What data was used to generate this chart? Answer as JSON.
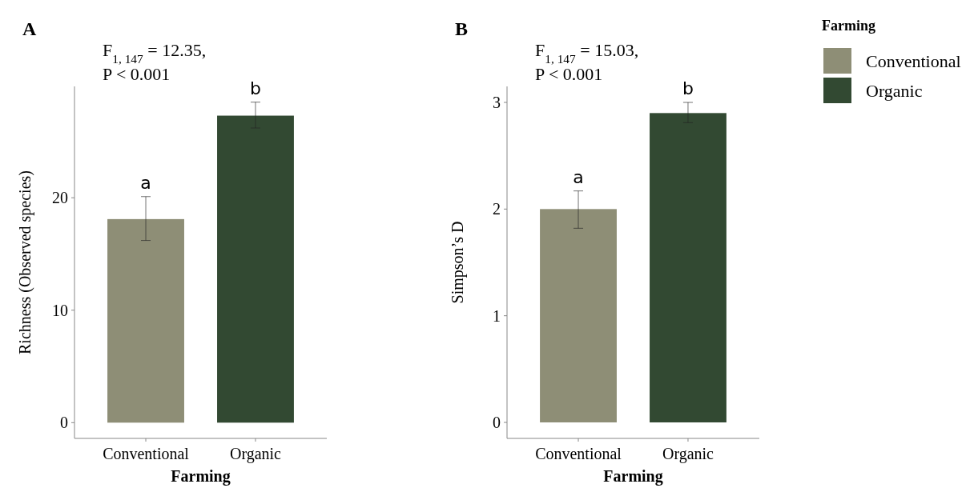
{
  "chart_data": [
    {
      "type": "bar",
      "title": "A",
      "xlabel": "Farming",
      "ylabel": "Richness (Observed species)",
      "categories": [
        "Conventional",
        "Organic"
      ],
      "series": [
        {
          "color": "#8e8e76",
          "values": [
            18.1,
            null
          ],
          "errors": [
            [
              16.2,
              20.1
            ],
            null
          ]
        },
        {
          "color": "#324932",
          "values": [
            null,
            27.3
          ],
          "errors": [
            null,
            [
              26.2,
              28.5
            ]
          ]
        }
      ],
      "ylim": [
        -1.4,
        29.9
      ],
      "yticks": [
        0,
        10,
        20
      ],
      "annotations": [
        "F$_{1, 147}$ = 12.35,",
        "P < 0.001",
        {
          "text": "a",
          "x": "Conventional",
          "y": 20.1
        },
        {
          "text": "b",
          "x": "Organic",
          "y": 28.5
        }
      ]
    },
    {
      "type": "bar",
      "title": "B",
      "xlabel": "Farming",
      "ylabel": "Simpson’s D",
      "legend_title": "Farming",
      "categories": [
        "Conventional",
        "Organic"
      ],
      "series": [
        {
          "name": "Conventional",
          "color": "#8e8e76",
          "values": [
            2.0,
            null
          ],
          "errors": [
            [
              1.82,
              2.17
            ],
            null
          ]
        },
        {
          "name": "Organic",
          "color": "#324932",
          "values": [
            null,
            2.9
          ],
          "errors": [
            null,
            [
              2.81,
              3.0
            ]
          ]
        }
      ],
      "ylim": [
        -0.15,
        3.15
      ],
      "yticks": [
        0,
        1,
        2,
        3
      ],
      "legend": "right",
      "annotations": [
        "F$_{1, 147}$ = 15.03,",
        "P < 0.001",
        {
          "text": "a",
          "x": "Conventional",
          "y": 2.17
        },
        {
          "text": "b",
          "x": "Organic",
          "y": 3.0
        }
      ]
    }
  ]
}
